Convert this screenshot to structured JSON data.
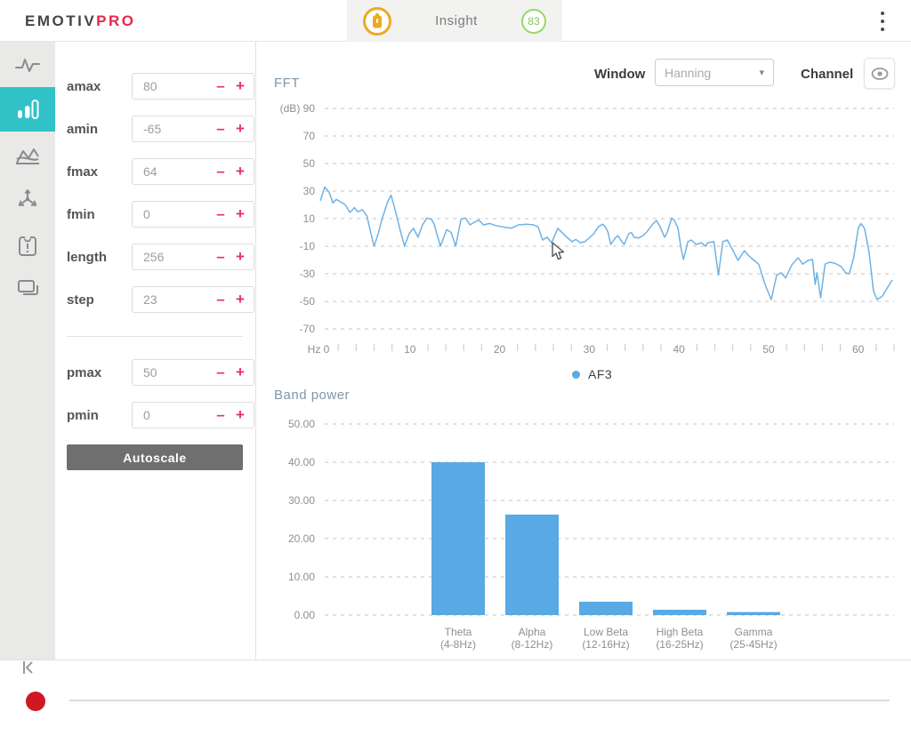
{
  "header": {
    "logo_part1": "EMOTIV",
    "logo_part2": "PRO",
    "device_name": "Insight",
    "contact_quality": "83"
  },
  "sidebar": {
    "icons": [
      "raw-eeg-icon",
      "fft-bands-icon",
      "performance-metrics-icon",
      "motion-sensors-icon",
      "data-packets-icon",
      "recordings-icon"
    ],
    "active": "fft-bands-icon"
  },
  "settings": {
    "fields": [
      {
        "label": "amax",
        "value": "80"
      },
      {
        "label": "amin",
        "value": "-65"
      },
      {
        "label": "fmax",
        "value": "64"
      },
      {
        "label": "fmin",
        "value": "0"
      },
      {
        "label": "length",
        "value": "256"
      },
      {
        "label": "step",
        "value": "23"
      },
      {
        "label": "pmax",
        "value": "50"
      },
      {
        "label": "pmin",
        "value": "0"
      }
    ],
    "autoscale_label": "Autoscale"
  },
  "fft_header": {
    "window_label": "Window",
    "window_value": "Hanning",
    "channel_label": "Channel",
    "legend": "AF3"
  },
  "colors": {
    "accent_teal": "#30c2c7",
    "accent_pink": "#e8335e",
    "line_blue": "#6fb2e5",
    "bar_blue": "#58a9e4",
    "grid_gray": "#c6c6c6",
    "axis_label_gray": "#8f8f8f",
    "record_red": "#d01823",
    "battery_orange": "#ecab21",
    "quality_green": "#97d66a"
  },
  "chart_data": [
    {
      "type": "line",
      "title": "FFT",
      "ylabel_unit": "(dB)",
      "xlabel_unit": "Hz",
      "ylim": [
        -70,
        90
      ],
      "xlim": [
        0,
        64
      ],
      "yticks": [
        90,
        70,
        50,
        30,
        10,
        -10,
        -30,
        -50,
        -70
      ],
      "xticks": [
        0,
        10,
        20,
        30,
        40,
        50,
        60
      ],
      "minor_tick_step": 2,
      "grid": "dashed",
      "legend_position": "bottom-center",
      "series": [
        {
          "name": "AF3",
          "color": "#6fb2e5",
          "points": [
            [
              0,
              23
            ],
            [
              0.5,
              33
            ],
            [
              1,
              29
            ],
            [
              1.4,
              21.5
            ],
            [
              1.8,
              24
            ],
            [
              2.3,
              22
            ],
            [
              2.8,
              20
            ],
            [
              3.3,
              14.5
            ],
            [
              3.8,
              18
            ],
            [
              4.2,
              15
            ],
            [
              4.7,
              16.5
            ],
            [
              5.2,
              12
            ],
            [
              5.7,
              -2
            ],
            [
              6,
              -10
            ],
            [
              6.5,
              0
            ],
            [
              6.9,
              10
            ],
            [
              7.5,
              22
            ],
            [
              7.9,
              27
            ],
            [
              8.4,
              15
            ],
            [
              8.9,
              2
            ],
            [
              9.4,
              -10
            ],
            [
              9.9,
              -1
            ],
            [
              10.4,
              3
            ],
            [
              10.9,
              -3.5
            ],
            [
              11.4,
              5.5
            ],
            [
              11.9,
              10.5
            ],
            [
              12.4,
              9.5
            ],
            [
              12.7,
              6
            ],
            [
              13.4,
              -10
            ],
            [
              14.1,
              2
            ],
            [
              14.6,
              0
            ],
            [
              15.1,
              -10
            ],
            [
              15.7,
              9.7
            ],
            [
              16.2,
              10.5
            ],
            [
              16.7,
              5.5
            ],
            [
              17.2,
              7.5
            ],
            [
              17.7,
              9
            ],
            [
              18.2,
              5.5
            ],
            [
              18.9,
              6.5
            ],
            [
              19.6,
              5
            ],
            [
              20.4,
              4
            ],
            [
              21.3,
              3
            ],
            [
              22.1,
              5.5
            ],
            [
              23,
              6
            ],
            [
              23.8,
              5.5
            ],
            [
              24.3,
              4
            ],
            [
              24.8,
              -5.5
            ],
            [
              25.3,
              -3.5
            ],
            [
              25.8,
              -7.5
            ],
            [
              26.5,
              3
            ],
            [
              27,
              -0.3
            ],
            [
              27.5,
              -3.5
            ],
            [
              28.1,
              -6.7
            ],
            [
              28.5,
              -5
            ],
            [
              29,
              -7.5
            ],
            [
              29.5,
              -6.7
            ],
            [
              30,
              -4
            ],
            [
              30.5,
              -1
            ],
            [
              31,
              4
            ],
            [
              31.5,
              6
            ],
            [
              31.8,
              4
            ],
            [
              32.1,
              0
            ],
            [
              32.4,
              -8.7
            ],
            [
              32.9,
              -4
            ],
            [
              33.2,
              -2.3
            ],
            [
              33.5,
              -5.5
            ],
            [
              33.9,
              -8.7
            ],
            [
              34.4,
              -1
            ],
            [
              34.7,
              0
            ],
            [
              35,
              -3.5
            ],
            [
              35.5,
              -4
            ],
            [
              36,
              -2.3
            ],
            [
              36.5,
              1
            ],
            [
              37,
              5.5
            ],
            [
              37.5,
              8.7
            ],
            [
              37.9,
              4
            ],
            [
              38.4,
              -3.5
            ],
            [
              38.7,
              0
            ],
            [
              39.2,
              10.5
            ],
            [
              39.5,
              8.7
            ],
            [
              39.9,
              3
            ],
            [
              40.2,
              -10
            ],
            [
              40.5,
              -19.7
            ],
            [
              41,
              -6.7
            ],
            [
              41.4,
              -5.5
            ],
            [
              41.9,
              -8.7
            ],
            [
              42.5,
              -7.5
            ],
            [
              43,
              -10
            ],
            [
              43.2,
              -7.5
            ],
            [
              43.9,
              -6.7
            ],
            [
              44.4,
              -31
            ],
            [
              44.9,
              -6.7
            ],
            [
              45.4,
              -5.5
            ],
            [
              46.1,
              -14
            ],
            [
              46.6,
              -20.3
            ],
            [
              47.3,
              -13.2
            ],
            [
              47.8,
              -17
            ],
            [
              48.4,
              -20.3
            ],
            [
              48.9,
              -23
            ],
            [
              49.6,
              -37.7
            ],
            [
              50.3,
              -48.7
            ],
            [
              50.9,
              -31
            ],
            [
              51.4,
              -29.3
            ],
            [
              51.9,
              -33
            ],
            [
              52.6,
              -23.5
            ],
            [
              53.3,
              -18.4
            ],
            [
              53.8,
              -23
            ],
            [
              54.4,
              -20.3
            ],
            [
              54.9,
              -19.7
            ],
            [
              55.2,
              -37.7
            ],
            [
              55.4,
              -29.3
            ],
            [
              55.8,
              -47.4
            ],
            [
              56.3,
              -23
            ],
            [
              56.8,
              -21.6
            ],
            [
              57.4,
              -22.3
            ],
            [
              58.1,
              -24.8
            ],
            [
              58.6,
              -29.3
            ],
            [
              59,
              -30
            ],
            [
              59.5,
              -18.4
            ],
            [
              60,
              3
            ],
            [
              60.3,
              6.5
            ],
            [
              60.7,
              3
            ],
            [
              61.2,
              -14
            ],
            [
              61.7,
              -42.3
            ],
            [
              62.1,
              -48.7
            ],
            [
              62.7,
              -46.1
            ],
            [
              63.3,
              -39.7
            ],
            [
              63.8,
              -34.5
            ]
          ]
        }
      ]
    },
    {
      "type": "bar",
      "title": "Band power",
      "ylim": [
        0,
        50
      ],
      "yticks": [
        "50.00",
        "40.00",
        "30.00",
        "20.00",
        "10.00",
        "0.00"
      ],
      "grid": "dashed",
      "bar_color": "#58a9e4",
      "categories": [
        {
          "label": "Theta",
          "range": "(4-8Hz)",
          "value": 40.0
        },
        {
          "label": "Alpha",
          "range": "(8-12Hz)",
          "value": 26.3
        },
        {
          "label": "Low Beta",
          "range": "(12-16Hz)",
          "value": 3.5
        },
        {
          "label": "High Beta",
          "range": "(16-25Hz)",
          "value": 1.4
        },
        {
          "label": "Gamma",
          "range": "(25-45Hz)",
          "value": 0.8
        }
      ]
    }
  ]
}
